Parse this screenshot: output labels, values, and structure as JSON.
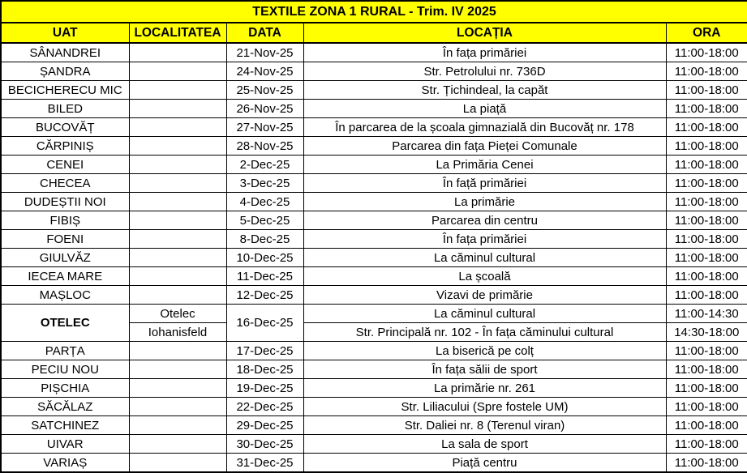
{
  "title": "TEXTILE ZONA 1 RURAL - Trim. IV 2025",
  "colors": {
    "header_bg": "#ffff00",
    "row_bg": "#ffffff",
    "text": "#000000",
    "border": "#000000"
  },
  "table": {
    "columns": [
      "UAT",
      "LOCALITATEA",
      "DATA",
      "LOCAȚIA",
      "ORA"
    ],
    "rows": [
      {
        "uat": "SÂNANDREI",
        "localitatea": "",
        "data": "21-Nov-25",
        "locatia": "În fața primăriei",
        "ora": "11:00-18:00"
      },
      {
        "uat": "ȘANDRA",
        "localitatea": "",
        "data": "24-Nov-25",
        "locatia": "Str. Petrolului nr. 736D",
        "ora": "11:00-18:00"
      },
      {
        "uat": "BECICHERECU MIC",
        "localitatea": "",
        "data": "25-Nov-25",
        "locatia": "Str. Țichindeal, la capăt",
        "ora": "11:00-18:00"
      },
      {
        "uat": "BILED",
        "localitatea": "",
        "data": "26-Nov-25",
        "locatia": "La piață",
        "ora": "11:00-18:00"
      },
      {
        "uat": "BUCOVĂȚ",
        "localitatea": "",
        "data": "27-Nov-25",
        "locatia": "În parcarea de la școala gimnazială din Bucovăț nr. 178",
        "ora": "11:00-18:00"
      },
      {
        "uat": "CĂRPINIȘ",
        "localitatea": "",
        "data": "28-Nov-25",
        "locatia": "Parcarea din fața Pieței Comunale",
        "ora": "11:00-18:00"
      },
      {
        "uat": "CENEI",
        "localitatea": "",
        "data": "2-Dec-25",
        "locatia": "La Primăria Cenei",
        "ora": "11:00-18:00"
      },
      {
        "uat": "CHECEA",
        "localitatea": "",
        "data": "3-Dec-25",
        "locatia": "În față primăriei",
        "ora": "11:00-18:00"
      },
      {
        "uat": "DUDEȘTII NOI",
        "localitatea": "",
        "data": "4-Dec-25",
        "locatia": "La primărie",
        "ora": "11:00-18:00"
      },
      {
        "uat": "FIBIȘ",
        "localitatea": "",
        "data": "5-Dec-25",
        "locatia": "Parcarea din centru",
        "ora": "11:00-18:00"
      },
      {
        "uat": "FOENI",
        "localitatea": "",
        "data": "8-Dec-25",
        "locatia": "În fața primăriei",
        "ora": "11:00-18:00"
      },
      {
        "uat": "GIULVĂZ",
        "localitatea": "",
        "data": "10-Dec-25",
        "locatia": "La căminul cultural",
        "ora": "11:00-18:00"
      },
      {
        "uat": "IECEA MARE",
        "localitatea": "",
        "data": "11-Dec-25",
        "locatia": "La școală",
        "ora": "11:00-18:00"
      },
      {
        "uat": "MAȘLOC",
        "localitatea": "",
        "data": "12-Dec-25",
        "locatia": "Vizavi de primărie",
        "ora": "11:00-18:00"
      },
      {
        "uat": "OTELEC",
        "data": "16-Dec-25",
        "sub_rows": [
          {
            "localitatea": "Otelec",
            "locatia": "La căminul cultural",
            "ora": "11:00-14:30"
          },
          {
            "localitatea": "Iohanisfeld",
            "locatia": "Str. Principală nr. 102 - În fața căminului cultural",
            "ora": "14:30-18:00"
          }
        ]
      },
      {
        "uat": "PARȚA",
        "localitatea": "",
        "data": "17-Dec-25",
        "locatia": "La biserică pe colț",
        "ora": "11:00-18:00"
      },
      {
        "uat": "PECIU NOU",
        "localitatea": "",
        "data": "18-Dec-25",
        "locatia": "În fața sălii de sport",
        "ora": "11:00-18:00"
      },
      {
        "uat": "PIȘCHIA",
        "localitatea": "",
        "data": "19-Dec-25",
        "locatia": "La primărie nr. 261",
        "ora": "11:00-18:00"
      },
      {
        "uat": "SĂCĂLAZ",
        "localitatea": "",
        "data": "22-Dec-25",
        "locatia": "Str. Liliacului (Spre fostele UM)",
        "ora": "11:00-18:00"
      },
      {
        "uat": "SATCHINEZ",
        "localitatea": "",
        "data": "29-Dec-25",
        "locatia": "Str. Daliei nr. 8 (Terenul viran)",
        "ora": "11:00-18:00"
      },
      {
        "uat": "UIVAR",
        "localitatea": "",
        "data": "30-Dec-25",
        "locatia": "La sala de sport",
        "ora": "11:00-18:00"
      },
      {
        "uat": "VARIAȘ",
        "localitatea": "",
        "data": "31-Dec-25",
        "locatia": "Piață centru",
        "ora": "11:00-18:00"
      }
    ]
  }
}
